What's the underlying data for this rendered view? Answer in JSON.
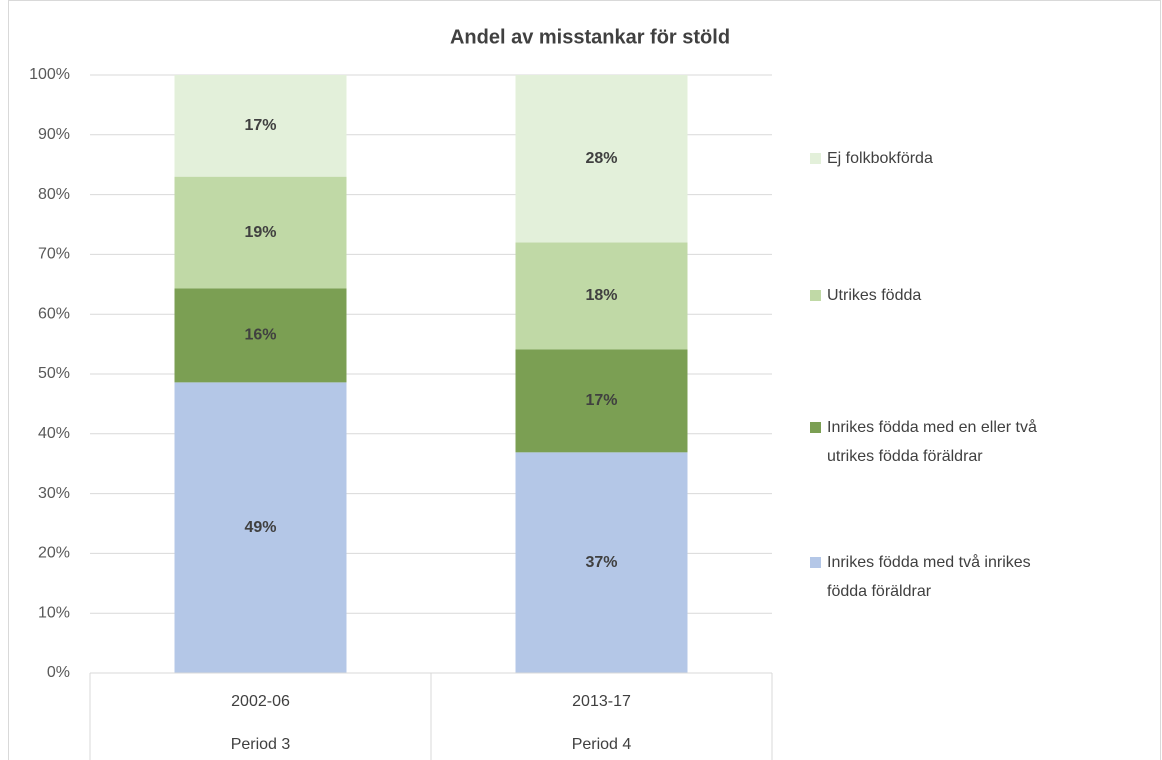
{
  "chart_data": {
    "type": "stacked_bar",
    "title": "Andel av misstankar för stöld",
    "categories": [
      "2002-06",
      "2013-17"
    ],
    "category_groups": [
      "Period 3",
      "Period 4"
    ],
    "series": [
      {
        "name": "Inrikes födda med två inrikes födda föräldrar",
        "color": "#b4c7e7",
        "values": [
          48.6,
          36.9
        ],
        "value_labels": [
          "49%",
          "37%"
        ]
      },
      {
        "name": "Inrikes födda med en eller två utrikes födda föräldrar",
        "color": "#7b9f53",
        "values": [
          15.7,
          17.2
        ],
        "value_labels": [
          "16%",
          "17%"
        ]
      },
      {
        "name": "Utrikes födda",
        "color": "#c0d9a6",
        "values": [
          18.7,
          17.9
        ],
        "value_labels": [
          "19%",
          "18%"
        ]
      },
      {
        "name": "Ej folkbokförda",
        "color": "#e3f0da",
        "values": [
          17.0,
          28.0
        ],
        "value_labels": [
          "17%",
          "28%"
        ]
      }
    ],
    "ylim": [
      0,
      100
    ],
    "yticks": [
      {
        "value": 0,
        "label": "0%"
      },
      {
        "value": 10,
        "label": "10%"
      },
      {
        "value": 20,
        "label": "20%"
      },
      {
        "value": 30,
        "label": "30%"
      },
      {
        "value": 40,
        "label": "40%"
      },
      {
        "value": 50,
        "label": "50%"
      },
      {
        "value": 60,
        "label": "60%"
      },
      {
        "value": 70,
        "label": "70%"
      },
      {
        "value": 80,
        "label": "80%"
      },
      {
        "value": 90,
        "label": "90%"
      },
      {
        "value": 100,
        "label": "100%"
      }
    ],
    "grid": true,
    "legend": "right"
  }
}
